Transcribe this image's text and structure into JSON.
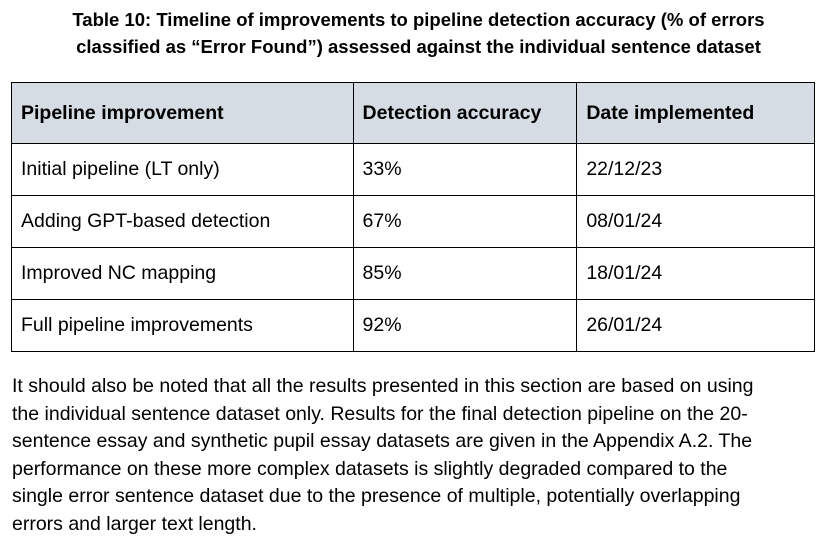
{
  "caption": {
    "lines": [
      "Table 10: Timeline of improvements to pipeline detection accuracy (% of errors",
      "classified as “Error Found”) assessed against the individual sentence dataset"
    ]
  },
  "table": {
    "headers": [
      "Pipeline improvement",
      "Detection accuracy",
      "Date implemented"
    ],
    "rows": [
      [
        "Initial pipeline (LT only)",
        "33%",
        "22/12/23"
      ],
      [
        "Adding GPT-based detection",
        "67%",
        "08/01/24"
      ],
      [
        "Improved NC mapping",
        "85%",
        "18/01/24"
      ],
      [
        "Full pipeline improvements",
        "92%",
        "26/01/24"
      ]
    ]
  },
  "paragraph": {
    "lines": [
      "It should also be noted that all the results presented in this section are based on using",
      "the individual sentence dataset only. Results for the final detection pipeline on the 20-",
      "sentence essay and synthetic pupil essay datasets are given in the Appendix A.2. The",
      "performance on these more complex datasets is slightly degraded compared to the",
      "single error sentence dataset due to the presence of multiple, potentially overlapping",
      "errors and larger text length."
    ]
  }
}
